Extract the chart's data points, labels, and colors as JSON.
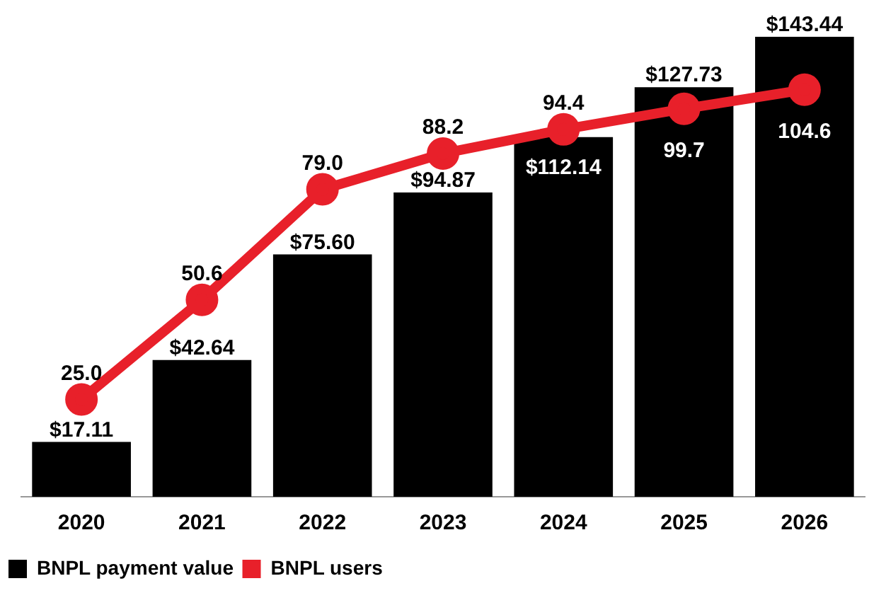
{
  "chart_data": {
    "type": "bar",
    "categories": [
      "2020",
      "2021",
      "2022",
      "2023",
      "2024",
      "2025",
      "2026"
    ],
    "series": [
      {
        "name": "BNPL payment value",
        "color": "#000000",
        "values": [
          17.11,
          42.64,
          75.6,
          94.87,
          112.14,
          127.73,
          143.44
        ],
        "value_labels": [
          "$17.11",
          "$42.64",
          "$75.60",
          "$94.87",
          "$112.14",
          "$127.73",
          "$143.44"
        ]
      },
      {
        "name": "BNPL users",
        "type": "line",
        "axis": "y2",
        "color": "#e8202a",
        "values": [
          25.0,
          50.6,
          79.0,
          88.2,
          94.4,
          99.7,
          104.6
        ],
        "value_labels": [
          "25.0",
          "50.6",
          "79.0",
          "88.2",
          "94.4",
          "99.7",
          "104.6"
        ]
      }
    ],
    "tick_labels": "x",
    "grid": false,
    "legend": "bottom left",
    "marker": "circle",
    "line_style": "solid"
  }
}
